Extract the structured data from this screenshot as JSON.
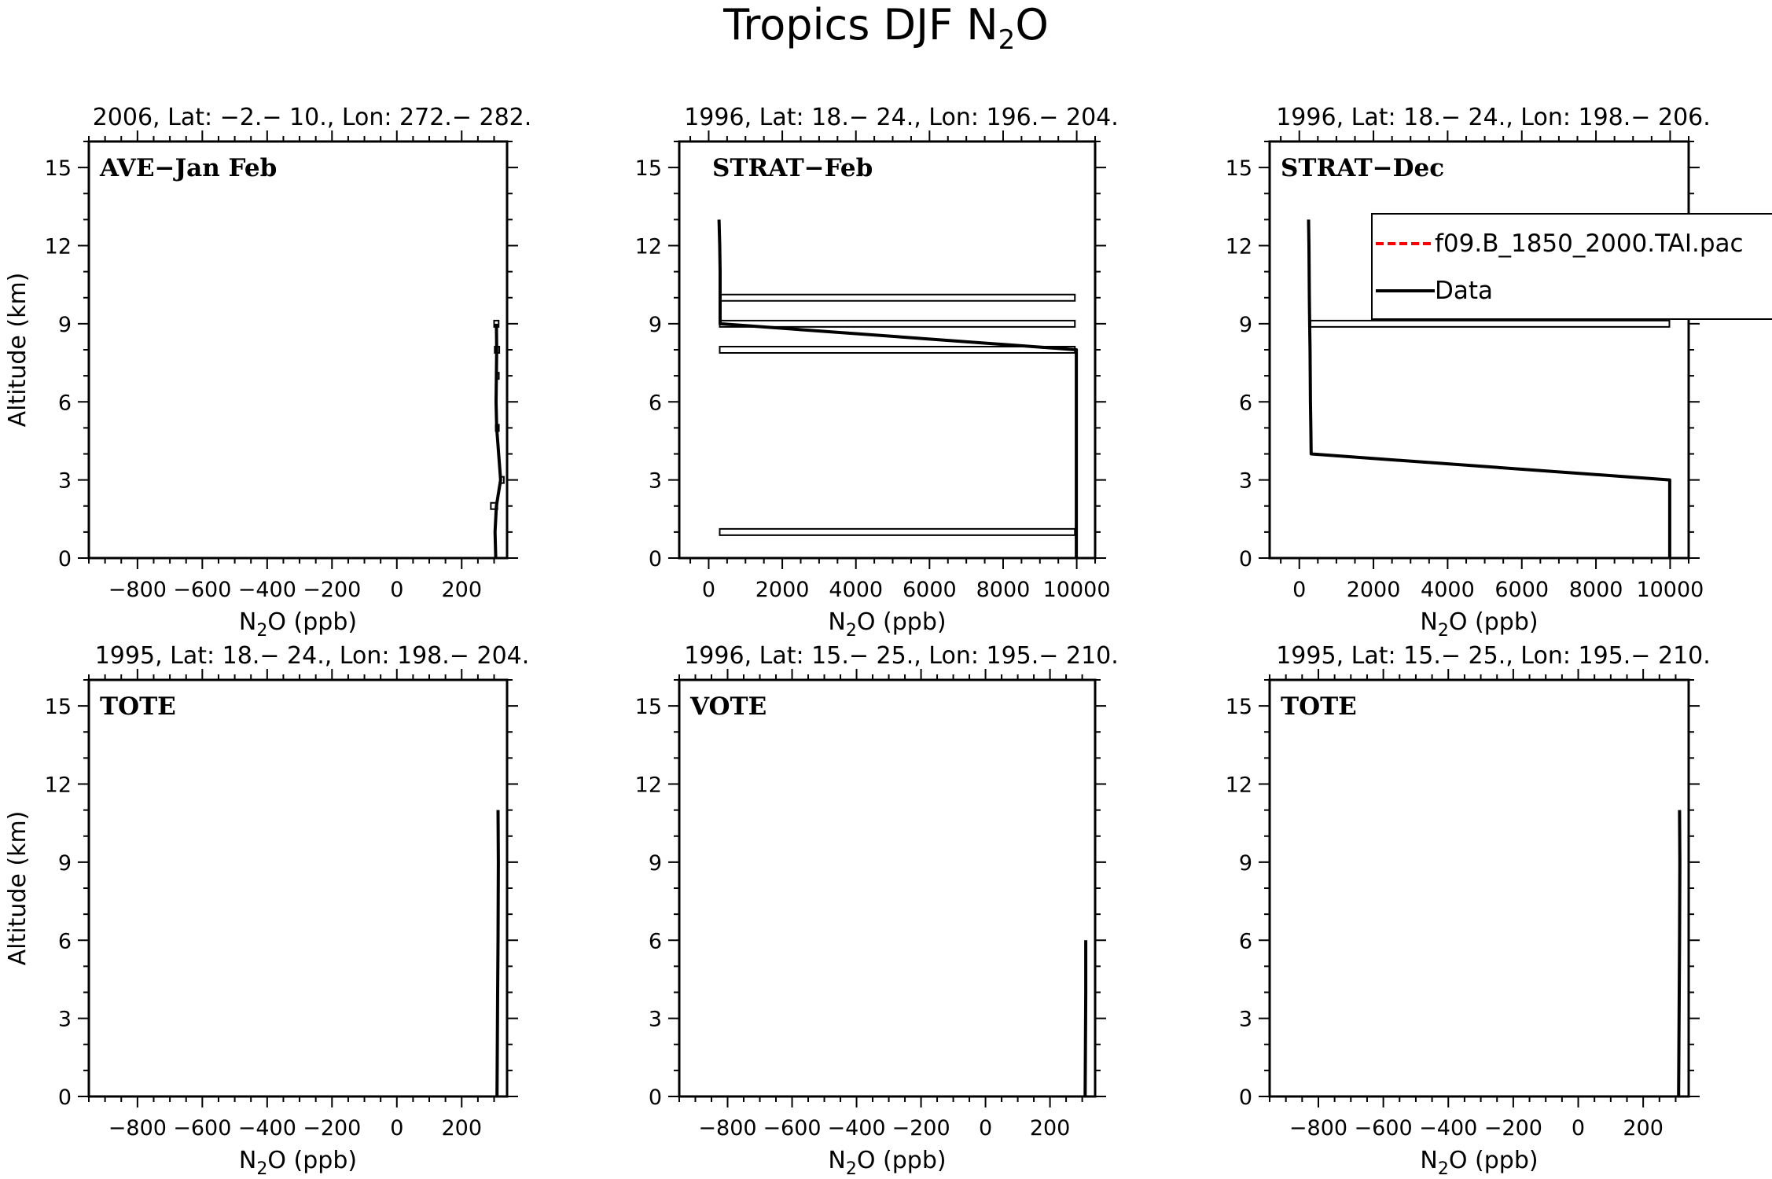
{
  "title": "Tropics DJF N2O",
  "title_parts": {
    "main": "Tropics DJF N",
    "sub": "2",
    "tail": "O"
  },
  "colors": {
    "model_line": "#ff0000",
    "data_line": "#000000",
    "axis": "#000000"
  },
  "chart_data": [
    {
      "type": "line",
      "header": "2006, Lat: −2.− 10., Lon: 272.− 282.",
      "campaign": "AVE−Jan Feb",
      "xlabel": "N2O (ppb)",
      "ylabel": "Altitude (km)",
      "xlim": [
        -950,
        340
      ],
      "ylim": [
        0,
        16
      ],
      "xticks": [
        -800,
        -600,
        -400,
        -200,
        0,
        200
      ],
      "xtick_labels": [
        "−800",
        "−600",
        "−400",
        "−200",
        "0",
        "200"
      ],
      "yticks": [
        0,
        3,
        6,
        9,
        12,
        15
      ],
      "ytick_labels": [
        "0",
        "3",
        "6",
        "9",
        "12",
        "15"
      ],
      "series": [
        {
          "name": "Data",
          "x": [
            305,
            303,
            307,
            320,
            308,
            306,
            307,
            308,
            307
          ],
          "y": [
            0,
            1,
            2,
            3,
            5,
            6,
            7,
            8,
            9
          ]
        }
      ],
      "std_boxes": [
        {
          "y": 2,
          "x0": 290,
          "x1": 310
        },
        {
          "y": 3,
          "x0": 318,
          "x1": 330
        },
        {
          "y": 5,
          "x0": 305,
          "x1": 311
        },
        {
          "y": 7,
          "x0": 305,
          "x1": 311
        },
        {
          "y": 8,
          "x0": 302,
          "x1": 316
        },
        {
          "y": 9,
          "x0": 300,
          "x1": 314
        }
      ]
    },
    {
      "type": "line",
      "header": "1996, Lat: 18.− 24., Lon: 196.− 204.",
      "campaign": "STRAT−Feb",
      "xlabel": "N2O (ppb)",
      "ylabel": "",
      "xlim": [
        -800,
        10500
      ],
      "ylim": [
        0,
        16
      ],
      "xticks": [
        0,
        2000,
        4000,
        6000,
        8000,
        10000
      ],
      "xtick_labels": [
        "0",
        "2000",
        "4000",
        "6000",
        "8000",
        "10000"
      ],
      "yticks": [
        0,
        3,
        6,
        9,
        12,
        15
      ],
      "ytick_labels": [
        "0",
        "3",
        "6",
        "9",
        "12",
        "15"
      ],
      "series": [
        {
          "name": "Data",
          "x": [
            9990,
            9990,
            9990,
            9990,
            9990,
            310,
            310,
            310,
            300,
            280
          ],
          "y": [
            0,
            1,
            3,
            6,
            8,
            9,
            10,
            11,
            12,
            13
          ]
        }
      ],
      "std_boxes": [
        {
          "y": 1,
          "x0": 300,
          "x1": 9950
        },
        {
          "y": 8,
          "x0": 300,
          "x1": 9950
        },
        {
          "y": 9,
          "x0": 300,
          "x1": 9950
        },
        {
          "y": 10,
          "x0": 300,
          "x1": 9950
        }
      ]
    },
    {
      "type": "line",
      "header": "1996, Lat: 18.− 24., Lon: 198.− 206.",
      "campaign": "STRAT−Dec",
      "xlabel": "N2O (ppb)",
      "ylabel": "",
      "xlim": [
        -800,
        10500
      ],
      "ylim": [
        0,
        16
      ],
      "xticks": [
        0,
        2000,
        4000,
        6000,
        8000,
        10000
      ],
      "xtick_labels": [
        "0",
        "2000",
        "4000",
        "6000",
        "8000",
        "10000"
      ],
      "yticks": [
        0,
        3,
        6,
        9,
        12,
        15
      ],
      "ytick_labels": [
        "0",
        "3",
        "6",
        "9",
        "12",
        "15"
      ],
      "series": [
        {
          "name": "Data",
          "x": [
            9990,
            9990,
            9990,
            320,
            310,
            300,
            290,
            280,
            270,
            260,
            250
          ],
          "y": [
            0,
            1,
            3,
            4,
            5,
            6,
            8,
            9,
            10,
            12,
            13
          ]
        }
      ],
      "std_boxes": [
        {
          "y": 9,
          "x0": 300,
          "x1": 9980
        }
      ],
      "legend": {
        "placement": "top-right",
        "entries": [
          {
            "label": "f09.B_1850_2000.TAI.pac",
            "style": "dashed",
            "color": "#ff0000"
          },
          {
            "label": "Data",
            "style": "solid",
            "color": "#000000"
          }
        ]
      }
    },
    {
      "type": "line",
      "header": "1995, Lat: 18.− 24., Lon: 198.− 204.",
      "campaign": "TOTE",
      "xlabel": "N2O (ppb)",
      "ylabel": "Altitude (km)",
      "xlim": [
        -950,
        340
      ],
      "ylim": [
        0,
        16
      ],
      "xticks": [
        -800,
        -600,
        -400,
        -200,
        0,
        200
      ],
      "xtick_labels": [
        "−800",
        "−600",
        "−400",
        "−200",
        "0",
        "200"
      ],
      "yticks": [
        0,
        3,
        6,
        9,
        12,
        15
      ],
      "ytick_labels": [
        "0",
        "3",
        "6",
        "9",
        "12",
        "15"
      ],
      "series": [
        {
          "name": "Data",
          "x": [
            309,
            310,
            311,
            312,
            313,
            312
          ],
          "y": [
            0,
            2,
            4,
            6,
            9,
            11
          ]
        }
      ],
      "std_boxes": []
    },
    {
      "type": "line",
      "header": "1996, Lat: 15.− 25., Lon: 195.− 210.",
      "campaign": "VOTE",
      "xlabel": "N2O (ppb)",
      "ylabel": "",
      "xlim": [
        -950,
        340
      ],
      "ylim": [
        0,
        16
      ],
      "xticks": [
        -800,
        -600,
        -400,
        -200,
        0,
        200
      ],
      "xtick_labels": [
        "−800",
        "−600",
        "−400",
        "−200",
        "0",
        "200"
      ],
      "yticks": [
        0,
        3,
        6,
        9,
        12,
        15
      ],
      "ytick_labels": [
        "0",
        "3",
        "6",
        "9",
        "12",
        "15"
      ],
      "series": [
        {
          "name": "Data",
          "x": [
            309,
            310,
            311,
            311
          ],
          "y": [
            0,
            2,
            4,
            6
          ]
        }
      ],
      "std_boxes": []
    },
    {
      "type": "line",
      "header": "1995, Lat: 15.− 25., Lon: 195.− 210.",
      "campaign": "TOTE",
      "xlabel": "N2O (ppb)",
      "ylabel": "",
      "xlim": [
        -950,
        340
      ],
      "ylim": [
        0,
        16
      ],
      "xticks": [
        -800,
        -600,
        -400,
        -200,
        0,
        200
      ],
      "xtick_labels": [
        "−800",
        "−600",
        "−400",
        "−200",
        "0",
        "200"
      ],
      "yticks": [
        0,
        3,
        6,
        9,
        12,
        15
      ],
      "ytick_labels": [
        "0",
        "3",
        "6",
        "9",
        "12",
        "15"
      ],
      "series": [
        {
          "name": "Data",
          "x": [
            309,
            310,
            311,
            312,
            313,
            312
          ],
          "y": [
            0,
            2,
            4,
            6,
            9,
            11
          ]
        }
      ],
      "std_boxes": []
    }
  ]
}
